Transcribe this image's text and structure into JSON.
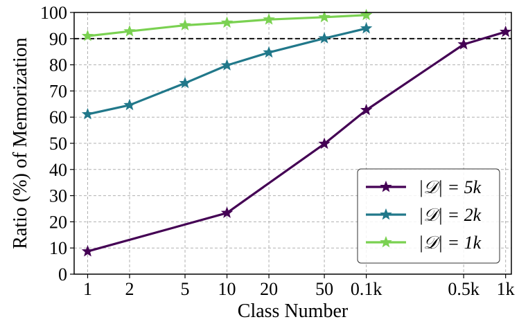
{
  "chart_data": {
    "type": "line",
    "xlabel": "Class Number",
    "ylabel": "Ratio (%) of Memorization",
    "categories": [
      "1",
      "2",
      "5",
      "10",
      "20",
      "50",
      "0.1k",
      "0.5k",
      "1k"
    ],
    "x_scale": "log",
    "x_values": [
      1,
      2,
      5,
      10,
      20,
      50,
      100,
      500,
      1000
    ],
    "ylim": [
      0,
      100
    ],
    "yticks": [
      0,
      10,
      20,
      30,
      40,
      50,
      60,
      70,
      80,
      90,
      100
    ],
    "grid": true,
    "reference_line": {
      "y": 90,
      "style": "dashed",
      "color": "#000000"
    },
    "legend_position": "lower-right",
    "series": [
      {
        "name": "|𝒟| = 5k",
        "color": "#440154",
        "marker": "star",
        "x": [
          1,
          10,
          50,
          100,
          500,
          1000
        ],
        "y": [
          8.7,
          23.4,
          49.8,
          62.7,
          87.8,
          92.6
        ]
      },
      {
        "name": "|𝒟| = 2k",
        "color": "#21788a",
        "marker": "star",
        "x": [
          1,
          2,
          5,
          10,
          20,
          50,
          100
        ],
        "y": [
          61.1,
          64.6,
          73.0,
          79.8,
          84.7,
          90.1,
          93.9
        ]
      },
      {
        "name": "|𝒟| = 1k",
        "color": "#7ad151",
        "marker": "star",
        "x": [
          1,
          2,
          5,
          10,
          20,
          50,
          100
        ],
        "y": [
          91.0,
          92.8,
          95.1,
          96.1,
          97.3,
          98.2,
          99.0
        ]
      }
    ]
  }
}
